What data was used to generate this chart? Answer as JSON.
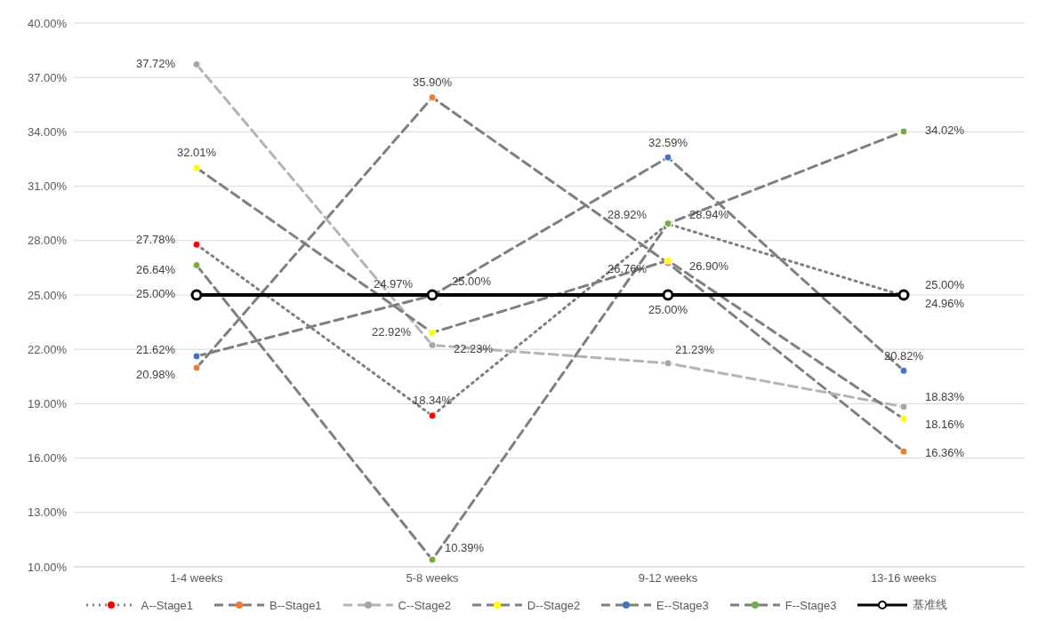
{
  "chart_data": {
    "type": "line",
    "categories": [
      "1-4 weeks",
      "5-8 weeks",
      "9-12 weeks",
      "13-16 weeks"
    ],
    "series": [
      {
        "name": "A--Stage1",
        "color": "#ff0000",
        "line_style": "dotted",
        "values": [
          27.78,
          18.34,
          28.92,
          24.96
        ],
        "value_labels": [
          "27.78%",
          "18.34%",
          "28.92%",
          "24.96%"
        ]
      },
      {
        "name": "B--Stage1",
        "color": "#ed7d31",
        "line_style": "dashed",
        "values": [
          20.98,
          35.9,
          26.76,
          16.36
        ],
        "value_labels": [
          "20.98%",
          "35.90%",
          "26.76%",
          "16.36%"
        ]
      },
      {
        "name": "C--Stage2",
        "color": "#a5a5a5",
        "line_style": "dashed",
        "values": [
          37.72,
          22.23,
          21.23,
          18.83
        ],
        "value_labels": [
          "37.72%",
          "22.23%",
          "21.23%",
          "18.83%"
        ]
      },
      {
        "name": "D--Stage2",
        "color": "#ffff00",
        "line_style": "dashed",
        "values": [
          32.01,
          22.92,
          26.9,
          18.16
        ],
        "value_labels": [
          "32.01%",
          "22.92%",
          "26.90%",
          "18.16%"
        ]
      },
      {
        "name": "E--Stage3",
        "color": "#4472c4",
        "line_style": "dashed",
        "values": [
          21.62,
          24.97,
          32.59,
          20.82
        ],
        "value_labels": [
          "21.62%",
          "24.97%",
          "32.59%",
          "20.82%"
        ]
      },
      {
        "name": "F--Stage3",
        "color": "#70ad47",
        "line_style": "dashed",
        "values": [
          26.64,
          10.39,
          28.94,
          34.02
        ],
        "value_labels": [
          "26.64%",
          "10.39%",
          "28.94%",
          "34.02%"
        ]
      },
      {
        "name": "基准线",
        "color": "#000000",
        "line_style": "solid",
        "values": [
          25,
          25,
          25,
          25
        ],
        "value_labels": [
          "25.00%",
          "25.00%",
          "25.00%",
          "25.00%"
        ]
      }
    ],
    "ylim": [
      10,
      40
    ],
    "yticks": [
      {
        "value": 10,
        "label": "10.00%"
      },
      {
        "value": 13,
        "label": "13.00%"
      },
      {
        "value": 16,
        "label": "16.00%"
      },
      {
        "value": 19,
        "label": "19.00%"
      },
      {
        "value": 22,
        "label": "22.00%"
      },
      {
        "value": 25,
        "label": "25.00%"
      },
      {
        "value": 28,
        "label": "28.00%"
      },
      {
        "value": 31,
        "label": "31.00%"
      },
      {
        "value": 34,
        "label": "34.00%"
      },
      {
        "value": 37,
        "label": "37.00%"
      },
      {
        "value": 40,
        "label": "40.00%"
      }
    ],
    "grid": "y",
    "legend": "bottom",
    "marker": "circle"
  }
}
